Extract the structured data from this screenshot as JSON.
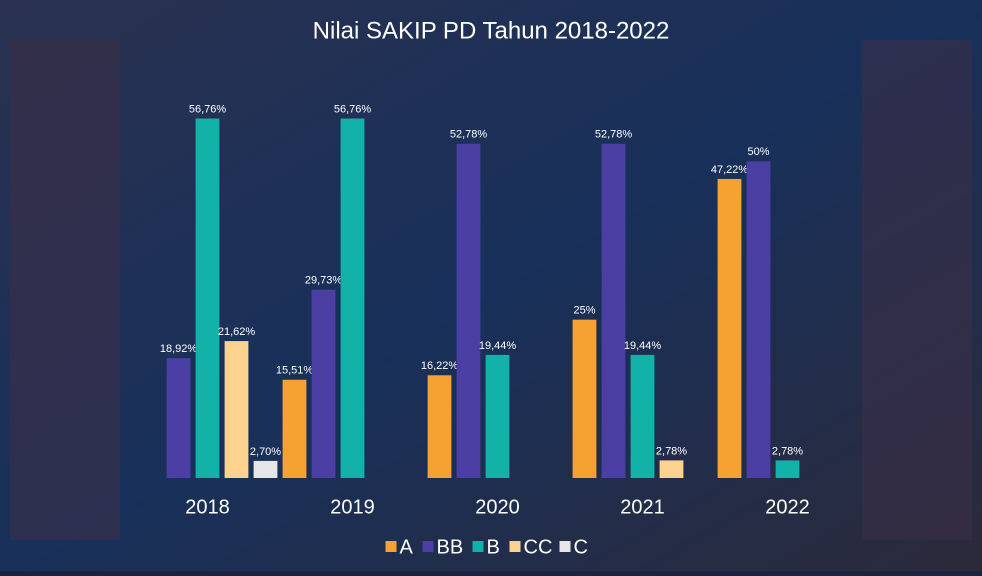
{
  "chart_data": {
    "type": "bar",
    "title": "Nilai SAKIP PD Tahun 2018-2022",
    "categories": [
      "2018",
      "2019",
      "2020",
      "2021",
      "2022"
    ],
    "series": [
      {
        "name": "A",
        "color": "#f6a232",
        "values": [
          null,
          15.51,
          16.22,
          25,
          47.22
        ],
        "value_labels": [
          null,
          "15,51%",
          "16,22%",
          "25%",
          "47,22%"
        ]
      },
      {
        "name": "BB",
        "color": "#4b3fa3",
        "values": [
          18.92,
          29.73,
          52.78,
          52.78,
          50
        ],
        "value_labels": [
          "18,92%",
          "29,73%",
          "52,78%",
          "52,78%",
          "50%"
        ]
      },
      {
        "name": "B",
        "color": "#12b2a8",
        "values": [
          56.76,
          56.76,
          19.44,
          19.44,
          2.78
        ],
        "value_labels": [
          "56,76%",
          "56,76%",
          "19,44%",
          "19,44%",
          "2,78%"
        ]
      },
      {
        "name": "CC",
        "color": "#fdd18e",
        "values": [
          21.62,
          null,
          null,
          2.78,
          null
        ],
        "value_labels": [
          "21,62%",
          null,
          null,
          "2,78%",
          null
        ]
      },
      {
        "name": "C",
        "color": "#e6e6e6",
        "values": [
          2.7,
          null,
          null,
          null,
          null
        ],
        "value_labels": [
          "2,70%",
          null,
          null,
          null,
          null
        ]
      }
    ],
    "ylim": [
      0,
      60
    ],
    "legend": "bottom"
  }
}
